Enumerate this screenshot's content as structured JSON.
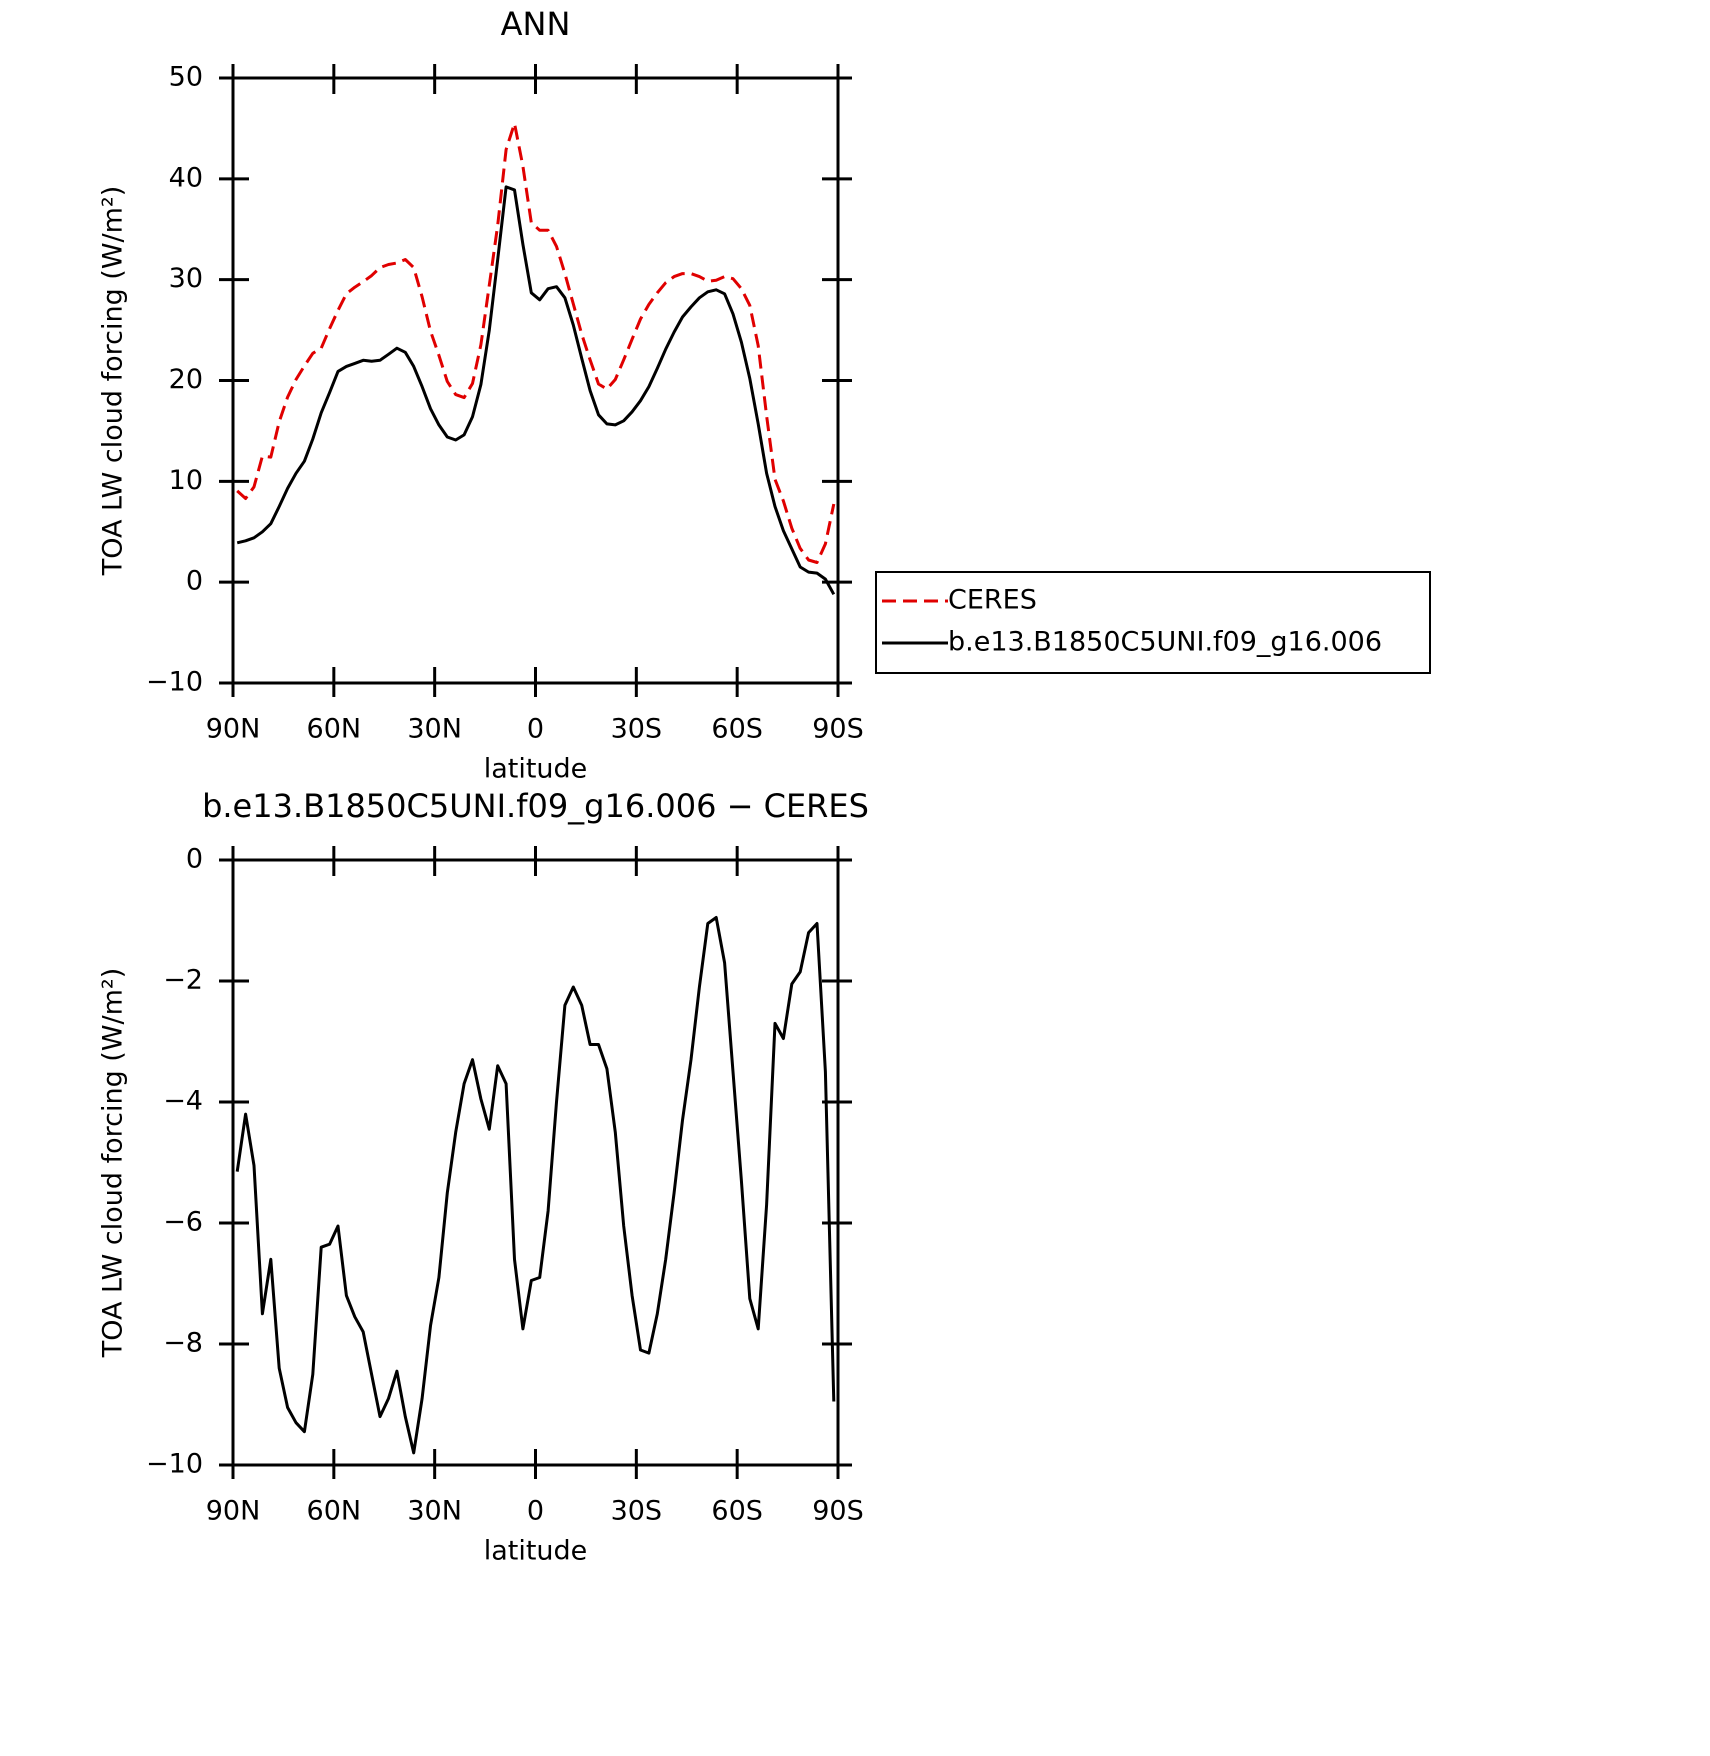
{
  "chart_data": [
    {
      "type": "line",
      "title": "ANN",
      "xlabel": "latitude",
      "ylabel": "TOA LW cloud forcing (W/m²)",
      "legend": "right",
      "xlim": [
        90,
        -90
      ],
      "xticks": [
        {
          "value": 90,
          "label": "90N"
        },
        {
          "value": 60,
          "label": "60N"
        },
        {
          "value": 30,
          "label": "30N"
        },
        0,
        {
          "value": -30,
          "label": "30S"
        },
        {
          "value": -60,
          "label": "60S"
        },
        {
          "value": -90,
          "label": "90S"
        }
      ],
      "ylim": [
        -10,
        50
      ],
      "yticks": [
        {
          "value": -10,
          "label": "−10"
        },
        0,
        10,
        20,
        30,
        40,
        50
      ],
      "x": [
        88.75,
        86.25,
        83.75,
        81.25,
        78.75,
        76.25,
        73.75,
        71.25,
        68.75,
        66.25,
        63.75,
        61.25,
        58.75,
        56.25,
        53.75,
        51.25,
        48.75,
        46.25,
        43.75,
        41.25,
        38.75,
        36.25,
        33.75,
        31.25,
        28.75,
        26.25,
        23.75,
        21.25,
        18.75,
        16.25,
        13.75,
        11.25,
        8.75,
        6.25,
        3.75,
        1.25,
        -1.25,
        -3.75,
        -6.25,
        -8.75,
        -11.25,
        -13.75,
        -16.25,
        -18.75,
        -21.25,
        -23.75,
        -26.25,
        -28.75,
        -31.25,
        -33.75,
        -36.25,
        -38.75,
        -41.25,
        -43.75,
        -46.25,
        -48.75,
        -51.25,
        -53.75,
        -56.25,
        -58.75,
        -61.25,
        -63.75,
        -66.25,
        -68.75,
        -71.25,
        -73.75,
        -76.25,
        -78.75,
        -81.25,
        -83.75,
        -86.25,
        -88.75
      ],
      "series": [
        {
          "name": "CERES",
          "color": "#e00000",
          "style": "dashed",
          "values": [
            9.05,
            8.3,
            9.45,
            12.5,
            12.4,
            15.9,
            18.35,
            20.1,
            21.45,
            22.7,
            23.2,
            25.15,
            26.95,
            28.6,
            29.25,
            29.8,
            30.4,
            31.2,
            31.5,
            31.65,
            32.0,
            31.2,
            28.3,
            24.9,
            22.5,
            19.9,
            18.6,
            18.3,
            19.7,
            23.55,
            29.45,
            35.4,
            42.9,
            45.5,
            41.25,
            35.65,
            34.9,
            34.9,
            33.3,
            30.6,
            27.6,
            24.6,
            22.05,
            19.65,
            19.15,
            20.1,
            22.05,
            24.1,
            26.1,
            27.55,
            28.7,
            29.7,
            30.3,
            30.6,
            30.6,
            30.3,
            29.85,
            29.95,
            30.3,
            30.1,
            29.1,
            27.45,
            23.45,
            16.5,
            10.2,
            8.05,
            5.35,
            3.35,
            2.2,
            1.95,
            3.8,
            7.75
          ]
        },
        {
          "name": "b.e13.B1850C5UNI.f09_g16.006",
          "color": "#000000",
          "style": "solid",
          "values": [
            3.9,
            4.1,
            4.4,
            5,
            5.8,
            7.5,
            9.3,
            10.8,
            12,
            14.2,
            16.8,
            18.8,
            20.9,
            21.4,
            21.7,
            22,
            21.9,
            22,
            22.6,
            23.2,
            22.8,
            21.4,
            19.4,
            17.2,
            15.6,
            14.4,
            14.1,
            14.6,
            16.4,
            19.6,
            25,
            32,
            39.2,
            38.9,
            33.5,
            28.7,
            28,
            29.1,
            29.3,
            28.2,
            25.5,
            22.2,
            19,
            16.6,
            15.7,
            15.6,
            16,
            16.9,
            18,
            19.4,
            21.2,
            23.1,
            24.8,
            26.3,
            27.3,
            28.2,
            28.8,
            29,
            28.6,
            26.6,
            23.8,
            20.2,
            15.7,
            10.8,
            7.5,
            5.1,
            3.3,
            1.5,
            1,
            0.9,
            0.3,
            -1.2
          ]
        }
      ]
    },
    {
      "type": "line",
      "title": "b.e13.B1850C5UNI.f09_g16.006 − CERES",
      "xlabel": "latitude",
      "ylabel": "TOA LW cloud forcing (W/m²)",
      "xlim": [
        90,
        -90
      ],
      "xticks": [
        {
          "value": 90,
          "label": "90N"
        },
        {
          "value": 60,
          "label": "60N"
        },
        {
          "value": 30,
          "label": "30N"
        },
        0,
        {
          "value": -30,
          "label": "30S"
        },
        {
          "value": -60,
          "label": "60S"
        },
        {
          "value": -90,
          "label": "90S"
        }
      ],
      "ylim": [
        -10,
        0
      ],
      "yticks": [
        {
          "value": -10,
          "label": "−10"
        },
        {
          "value": -8,
          "label": "−8"
        },
        {
          "value": -6,
          "label": "−6"
        },
        {
          "value": -4,
          "label": "−4"
        },
        {
          "value": -2,
          "label": "−2"
        },
        0
      ],
      "x": [
        88.75,
        86.25,
        83.75,
        81.25,
        78.75,
        76.25,
        73.75,
        71.25,
        68.75,
        66.25,
        63.75,
        61.25,
        58.75,
        56.25,
        53.75,
        51.25,
        48.75,
        46.25,
        43.75,
        41.25,
        38.75,
        36.25,
        33.75,
        31.25,
        28.75,
        26.25,
        23.75,
        21.25,
        18.75,
        16.25,
        13.75,
        11.25,
        8.75,
        6.25,
        3.75,
        1.25,
        -1.25,
        -3.75,
        -6.25,
        -8.75,
        -11.25,
        -13.75,
        -16.25,
        -18.75,
        -21.25,
        -23.75,
        -26.25,
        -28.75,
        -31.25,
        -33.75,
        -36.25,
        -38.75,
        -41.25,
        -43.75,
        -46.25,
        -48.75,
        -51.25,
        -53.75,
        -56.25,
        -58.75,
        -61.25,
        -63.75,
        -66.25,
        -68.75,
        -71.25,
        -73.75,
        -76.25,
        -78.75,
        -81.25,
        -83.75,
        -86.25,
        -88.75
      ],
      "series": [
        {
          "color": "#000000",
          "style": "solid",
          "values": [
            -5.15,
            -4.2,
            -5.05,
            -7.5,
            -6.6,
            -8.4,
            -9.05,
            -9.3,
            -9.45,
            -8.5,
            -6.4,
            -6.35,
            -6.05,
            -7.2,
            -7.55,
            -7.8,
            -8.5,
            -9.2,
            -8.9,
            -8.45,
            -9.2,
            -9.8,
            -8.9,
            -7.7,
            -6.9,
            -5.5,
            -4.5,
            -3.7,
            -3.3,
            -3.95,
            -4.45,
            -3.4,
            -3.7,
            -6.6,
            -7.75,
            -6.95,
            -6.9,
            -5.8,
            -4,
            -2.4,
            -2.1,
            -2.4,
            -3.05,
            -3.05,
            -3.45,
            -4.5,
            -6.05,
            -7.2,
            -8.1,
            -8.15,
            -7.5,
            -6.6,
            -5.5,
            -4.3,
            -3.3,
            -2.1,
            -1.05,
            -0.95,
            -1.7,
            -3.5,
            -5.3,
            -7.25,
            -7.75,
            -5.7,
            -2.7,
            -2.95,
            -2.05,
            -1.85,
            -1.2,
            -1.05,
            -3.5,
            -8.95
          ]
        }
      ]
    }
  ]
}
